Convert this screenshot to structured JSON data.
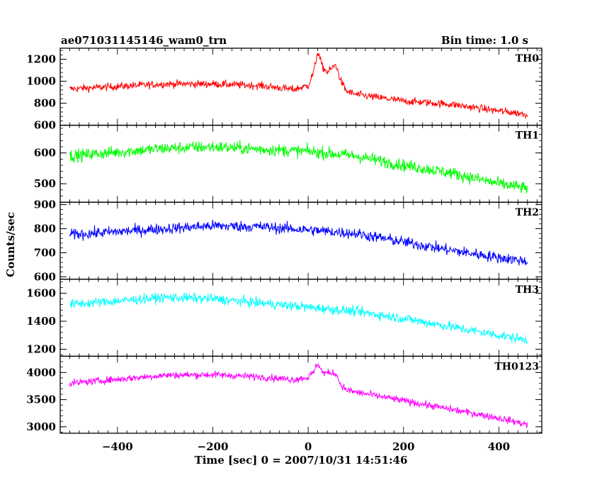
{
  "chart_data": {
    "type": "line",
    "title": "ae071031145146_wam0_trn",
    "bin_time": "Bin time: 1.0 s",
    "xlabel": "Time [sec] 0 = 2007/10/31 14:51:46",
    "ylabel": "Counts/sec",
    "xlim": [
      -520,
      490
    ],
    "x_ticks": [
      -400,
      -200,
      0,
      200,
      400
    ],
    "x_tick_labels": [
      "−400",
      "−200",
      "0",
      "200",
      "400"
    ],
    "x_range_data": [
      -500,
      460
    ],
    "grid": false,
    "panels": [
      {
        "name": "TH0",
        "color": "#ff0000",
        "ylim": [
          600,
          1300
        ],
        "y_ticks": [
          600,
          800,
          1000,
          1200
        ],
        "y_tick_labels": [
          "600",
          "800",
          "1000",
          "1200"
        ],
        "profile": [
          [
            -500,
            930
          ],
          [
            -300,
            975
          ],
          [
            -200,
            975
          ],
          [
            -100,
            960
          ],
          [
            -30,
            925
          ],
          [
            0,
            960
          ],
          [
            12,
            1090
          ],
          [
            20,
            1270
          ],
          [
            30,
            1130
          ],
          [
            40,
            1080
          ],
          [
            58,
            1150
          ],
          [
            68,
            1010
          ],
          [
            80,
            910
          ],
          [
            100,
            880
          ],
          [
            200,
            820
          ],
          [
            300,
            790
          ],
          [
            400,
            730
          ],
          [
            460,
            700
          ]
        ],
        "noise": 45
      },
      {
        "name": "TH1",
        "color": "#00ff00",
        "ylim": [
          440,
          690
        ],
        "y_ticks": [
          500,
          600
        ],
        "y_tick_labels": [
          "500",
          "600"
        ],
        "profile": [
          [
            -500,
            590
          ],
          [
            -300,
            615
          ],
          [
            -200,
            620
          ],
          [
            -100,
            612
          ],
          [
            0,
            605
          ],
          [
            100,
            590
          ],
          [
            200,
            560
          ],
          [
            300,
            535
          ],
          [
            400,
            500
          ],
          [
            460,
            485
          ]
        ],
        "noise": 26
      },
      {
        "name": "TH2",
        "color": "#0000ff",
        "ylim": [
          590,
          910
        ],
        "y_ticks": [
          600,
          700,
          800,
          900
        ],
        "y_tick_labels": [
          "600",
          "700",
          "800",
          "900"
        ],
        "profile": [
          [
            -500,
            775
          ],
          [
            -300,
            800
          ],
          [
            -200,
            812
          ],
          [
            -100,
            808
          ],
          [
            0,
            795
          ],
          [
            100,
            780
          ],
          [
            200,
            745
          ],
          [
            300,
            710
          ],
          [
            400,
            680
          ],
          [
            460,
            665
          ]
        ],
        "noise": 30
      },
      {
        "name": "TH3",
        "color": "#00ffff",
        "ylim": [
          1150,
          1700
        ],
        "y_ticks": [
          1200,
          1400,
          1600
        ],
        "y_tick_labels": [
          "1200",
          "1400",
          "1600"
        ],
        "profile": [
          [
            -500,
            1520
          ],
          [
            -300,
            1570
          ],
          [
            -200,
            1560
          ],
          [
            -100,
            1530
          ],
          [
            0,
            1500
          ],
          [
            100,
            1470
          ],
          [
            200,
            1420
          ],
          [
            300,
            1360
          ],
          [
            400,
            1300
          ],
          [
            460,
            1265
          ]
        ],
        "noise": 45
      },
      {
        "name": "TH0123",
        "color": "#ff00ff",
        "ylim": [
          2880,
          4300
        ],
        "y_ticks": [
          3000,
          3500,
          4000
        ],
        "y_tick_labels": [
          "3000",
          "3500",
          "4000"
        ],
        "profile": [
          [
            -500,
            3800
          ],
          [
            -300,
            3950
          ],
          [
            -200,
            3960
          ],
          [
            -100,
            3920
          ],
          [
            -30,
            3870
          ],
          [
            0,
            3910
          ],
          [
            12,
            4010
          ],
          [
            20,
            4180
          ],
          [
            30,
            4000
          ],
          [
            40,
            3990
          ],
          [
            58,
            3990
          ],
          [
            68,
            3780
          ],
          [
            80,
            3680
          ],
          [
            100,
            3640
          ],
          [
            200,
            3480
          ],
          [
            300,
            3320
          ],
          [
            400,
            3160
          ],
          [
            460,
            3040
          ]
        ],
        "noise": 85
      }
    ]
  }
}
